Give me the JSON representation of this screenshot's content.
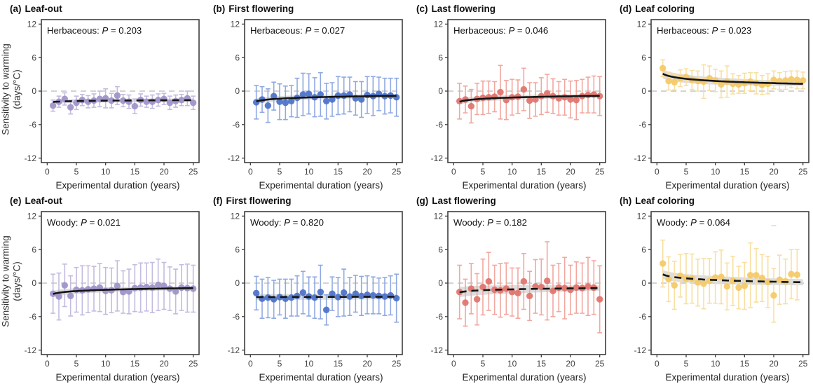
{
  "figure": {
    "ylabel_line1": "Sensitivity to warming",
    "ylabel_line2": "(days/°C)",
    "xlabel": "Experimental duration (years)",
    "yticks": [
      -12,
      -6,
      0,
      6,
      12
    ],
    "xticks": [
      0,
      5,
      10,
      15,
      20,
      25
    ],
    "ylim": [
      -12.8,
      12.8
    ],
    "xlim": [
      -1,
      26
    ],
    "colors": {
      "trend_line": "#141414",
      "zero_line": "#b9b9b9",
      "ci_band": "#d7d7d7",
      "panel_border": "#3d3d3d",
      "purple_point": "#9e91c9",
      "purple_bar": "#c4bbdf",
      "blue_point": "#4b71c9",
      "blue_bar": "#8fa9e2",
      "red_point": "#e0736c",
      "red_bar": "#f2a79f",
      "yellow_point": "#f4c966",
      "yellow_bar": "#f8dfa2"
    }
  },
  "chart_data": [
    {
      "type": "scatter",
      "label": "(a)",
      "title": "Leaf-out",
      "annotation": {
        "prefix": "Herbaceous: ",
        "p": "P",
        "suffix": " = 0.203"
      },
      "point_color": "#9e91c9",
      "bar_color": "#c4bbdf",
      "trend_style": "dashed",
      "trend": {
        "start": -1.95,
        "end": -1.62,
        "shape": "log"
      },
      "band": {
        "start": 0.35,
        "end": 0.3
      },
      "x": [
        1,
        2,
        3,
        4,
        5,
        6,
        7,
        8,
        9,
        10,
        11,
        12,
        13,
        14,
        15,
        16,
        17,
        18,
        19,
        20,
        21,
        22,
        23,
        24,
        25
      ],
      "y": [
        -2.6,
        -1.9,
        -1.4,
        -2.9,
        -2.1,
        -1.6,
        -1.9,
        -1.7,
        -1.4,
        -1.3,
        -1.7,
        -0.8,
        -1.7,
        -1.9,
        -2.7,
        -1.6,
        -1.9,
        -1.9,
        -1.6,
        -1.4,
        -2.1,
        -1.8,
        -1.6,
        -1.3,
        -2.1
      ],
      "err": [
        1.0,
        1.0,
        1.1,
        1.2,
        1.2,
        1.0,
        1.1,
        1.2,
        1.4,
        1.7,
        1.3,
        1.6,
        1.1,
        1.2,
        1.3,
        1.1,
        1.0,
        1.2,
        1.1,
        1.0,
        1.2,
        1.1,
        1.0,
        1.3,
        1.2
      ]
    },
    {
      "type": "scatter",
      "label": "(b)",
      "title": "First flowering",
      "annotation": {
        "prefix": "Herbaceous: ",
        "p": "P",
        "suffix": " = 0.027"
      },
      "point_color": "#4b71c9",
      "bar_color": "#8fa9e2",
      "trend_style": "solid",
      "trend": {
        "start": -1.85,
        "end": -0.85,
        "shape": "log"
      },
      "band": {
        "start": 0.5,
        "end": 0.3
      },
      "x": [
        1,
        2,
        3,
        4,
        5,
        6,
        7,
        8,
        9,
        10,
        11,
        12,
        13,
        14,
        15,
        16,
        17,
        18,
        19,
        20,
        21,
        22,
        23,
        24,
        25
      ],
      "y": [
        -2.0,
        -1.5,
        -2.6,
        -0.9,
        -1.9,
        -2.1,
        -1.8,
        -1.2,
        -0.6,
        -0.5,
        -1.1,
        -0.6,
        -1.8,
        -1.5,
        -0.8,
        -0.8,
        -0.6,
        -1.3,
        -1.5,
        -0.7,
        -0.9,
        -0.5,
        -0.9,
        -0.8,
        -1.1
      ],
      "err": [
        3.0,
        2.3,
        3.0,
        2.5,
        3.2,
        3.0,
        2.8,
        3.5,
        3.8,
        3.6,
        3.5,
        3.9,
        3.2,
        3.0,
        3.4,
        3.3,
        3.1,
        3.0,
        3.2,
        3.3,
        3.5,
        3.0,
        3.2,
        3.1,
        3.4
      ]
    },
    {
      "type": "scatter",
      "label": "(c)",
      "title": "Last flowering",
      "annotation": {
        "prefix": "Herbaceous: ",
        "p": "P",
        "suffix": " = 0.046"
      },
      "point_color": "#e0736c",
      "bar_color": "#f2a79f",
      "trend_style": "solid",
      "trend": {
        "start": -1.9,
        "end": -0.85,
        "shape": "log"
      },
      "band": {
        "start": 0.5,
        "end": 0.3
      },
      "x": [
        1,
        2,
        3,
        4,
        5,
        6,
        7,
        8,
        9,
        10,
        11,
        12,
        13,
        14,
        15,
        16,
        17,
        18,
        19,
        20,
        21,
        22,
        23,
        24,
        25
      ],
      "y": [
        -1.8,
        -1.5,
        -2.7,
        -1.4,
        -1.2,
        -1.1,
        -1.0,
        -0.2,
        -1.6,
        -1.1,
        -1.0,
        0.3,
        -1.7,
        -1.5,
        -0.9,
        -0.4,
        -0.9,
        -1.3,
        -1.1,
        -1.5,
        -1.6,
        -0.9,
        -0.7,
        -0.6,
        -0.9
      ],
      "err": [
        3.2,
        2.4,
        3.0,
        2.8,
        3.0,
        2.9,
        2.7,
        4.8,
        3.5,
        3.2,
        3.0,
        3.8,
        3.2,
        3.0,
        3.3,
        3.4,
        3.1,
        3.0,
        3.2,
        3.3,
        3.5,
        3.0,
        3.2,
        3.3,
        3.5
      ]
    },
    {
      "type": "scatter",
      "label": "(d)",
      "title": "Leaf coloring",
      "annotation": {
        "prefix": "Herbaceous: ",
        "p": "P",
        "suffix": " = 0.023"
      },
      "point_color": "#f4c966",
      "bar_color": "#f8dfa2",
      "trend_style": "solid",
      "trend": {
        "start": 3.1,
        "end": 1.3,
        "shape": "log"
      },
      "band": {
        "start": 0.8,
        "end": 0.4
      },
      "x": [
        1,
        2,
        3,
        4,
        5,
        6,
        7,
        8,
        9,
        10,
        11,
        12,
        13,
        14,
        15,
        16,
        17,
        18,
        19,
        20,
        21,
        22,
        23,
        24,
        25
      ],
      "y": [
        4.1,
        1.8,
        1.6,
        2.3,
        2.5,
        2.0,
        1.8,
        1.7,
        2.3,
        1.9,
        1.2,
        1.7,
        1.3,
        1.2,
        1.4,
        1.7,
        1.4,
        1.1,
        1.3,
        2.0,
        1.8,
        1.9,
        2.1,
        2.0,
        1.9
      ],
      "err": [
        1.5,
        1.6,
        1.4,
        1.5,
        1.5,
        1.7,
        1.8,
        3.0,
        2.2,
        2.0,
        2.4,
        2.8,
        1.8,
        1.6,
        1.8,
        1.6,
        1.9,
        1.7,
        1.8,
        1.6,
        1.5,
        1.6,
        1.5,
        1.6,
        1.5
      ]
    },
    {
      "type": "scatter",
      "label": "(e)",
      "title": "Leaf-out",
      "annotation": {
        "prefix": "Woody: ",
        "p": "P",
        "suffix": " = 0.021"
      },
      "point_color": "#9e91c9",
      "bar_color": "#c4bbdf",
      "trend_style": "solid",
      "trend": {
        "start": -1.95,
        "end": -0.9,
        "shape": "log"
      },
      "band": {
        "start": 0.55,
        "end": 0.3
      },
      "x": [
        1,
        2,
        3,
        4,
        5,
        6,
        7,
        8,
        9,
        10,
        11,
        12,
        13,
        14,
        15,
        16,
        17,
        18,
        19,
        20,
        21,
        22,
        23,
        24,
        25
      ],
      "y": [
        -1.9,
        -2.4,
        -0.4,
        -2.3,
        -1.2,
        -1.3,
        -1.1,
        -1.0,
        -0.8,
        -1.4,
        -1.3,
        -0.5,
        -1.6,
        -1.5,
        -0.9,
        -0.8,
        -0.7,
        -0.8,
        -0.3,
        -0.5,
        -1.0,
        -1.5,
        -0.8,
        -0.9,
        -1.0
      ],
      "err": [
        3.5,
        4.2,
        3.8,
        3.6,
        4.0,
        4.4,
        4.2,
        4.0,
        4.3,
        4.2,
        4.0,
        4.5,
        3.8,
        4.0,
        4.2,
        4.4,
        4.3,
        4.5,
        4.6,
        4.2,
        3.9,
        4.0,
        4.1,
        4.3,
        4.2
      ]
    },
    {
      "type": "scatter",
      "label": "(f)",
      "title": "First flowering",
      "annotation": {
        "prefix": "Woody: ",
        "p": "P",
        "suffix": " = 0.820"
      },
      "point_color": "#4b71c9",
      "bar_color": "#8fa9e2",
      "trend_style": "dashed",
      "trend": {
        "start": -2.5,
        "end": -2.45,
        "shape": "linear"
      },
      "band": {
        "start": 0.55,
        "end": 0.45
      },
      "x": [
        1,
        2,
        3,
        4,
        5,
        6,
        7,
        8,
        9,
        10,
        11,
        12,
        13,
        14,
        15,
        16,
        17,
        18,
        19,
        20,
        21,
        22,
        23,
        24,
        25
      ],
      "y": [
        -1.8,
        -2.8,
        -2.6,
        -2.9,
        -2.5,
        -2.8,
        -2.6,
        -2.3,
        -1.7,
        -2.4,
        -2.6,
        -1.6,
        -4.8,
        -1.9,
        -2.5,
        -1.7,
        -2.4,
        -1.9,
        -2.3,
        -2.1,
        -2.2,
        -2.3,
        -2.4,
        -2.2,
        -2.7
      ],
      "err": [
        3.0,
        3.5,
        3.6,
        3.4,
        3.2,
        3.5,
        3.3,
        3.6,
        3.8,
        3.5,
        3.7,
        4.8,
        2.7,
        3.0,
        3.5,
        4.2,
        3.4,
        3.3,
        3.5,
        3.4,
        3.3,
        3.2,
        3.4,
        3.5,
        4.3
      ]
    },
    {
      "type": "scatter",
      "label": "(g)",
      "title": "Last flowering",
      "annotation": {
        "prefix": "Woody: ",
        "p": "P",
        "suffix": " = 0.182"
      },
      "point_color": "#e0736c",
      "bar_color": "#f2a79f",
      "trend_style": "dashed",
      "trend": {
        "start": -1.65,
        "end": -0.9,
        "shape": "log"
      },
      "band": {
        "start": 0.9,
        "end": 0.45
      },
      "x": [
        1,
        2,
        3,
        4,
        5,
        6,
        7,
        8,
        9,
        10,
        11,
        12,
        13,
        14,
        15,
        16,
        17,
        18,
        19,
        20,
        21,
        22,
        23,
        24,
        25
      ],
      "y": [
        -1.6,
        -3.5,
        -1.0,
        -2.9,
        -0.7,
        0.3,
        -1.2,
        -1.3,
        -1.0,
        -1.6,
        -1.8,
        0.3,
        -2.3,
        -0.6,
        -0.7,
        0.4,
        -1.4,
        -0.8,
        -0.9,
        -1.2,
        -0.8,
        -0.9,
        -0.6,
        -0.8,
        -2.9
      ],
      "err": [
        4.8,
        4.2,
        4.5,
        4.6,
        5.0,
        5.2,
        4.4,
        4.8,
        4.6,
        4.3,
        4.5,
        5.0,
        4.4,
        4.8,
        5.0,
        7.0,
        4.6,
        4.3,
        5.5,
        4.4,
        4.6,
        4.5,
        5.2,
        4.8,
        6.0
      ]
    },
    {
      "type": "scatter",
      "label": "(h)",
      "title": "Leaf coloring",
      "annotation": {
        "prefix": "Woody: ",
        "p": "P",
        "suffix": " = 0.064"
      },
      "point_color": "#f4c966",
      "bar_color": "#f8dfa2",
      "trend_style": "dashed",
      "trend": {
        "start": 1.55,
        "end": 0.15,
        "shape": "log"
      },
      "band": {
        "start": 0.8,
        "end": 0.55
      },
      "x": [
        1,
        2,
        3,
        4,
        5,
        6,
        7,
        8,
        9,
        10,
        11,
        12,
        13,
        14,
        15,
        16,
        17,
        18,
        19,
        20,
        21,
        22,
        23,
        24
      ],
      "y": [
        3.5,
        0.7,
        -0.4,
        1.3,
        0.8,
        0.8,
        0.1,
        -0.1,
        0.4,
        1.0,
        1.1,
        -0.6,
        0.4,
        -0.8,
        -0.5,
        1.4,
        1.4,
        0.9,
        0.2,
        -2.2,
        0.6,
        0.3,
        1.6,
        1.5
      ],
      "err": [
        4.2,
        4.0,
        4.3,
        3.8,
        4.5,
        4.4,
        4.2,
        4.5,
        4.0,
        4.6,
        4.8,
        4.2,
        4.4,
        3.8,
        4.2,
        5.8,
        4.8,
        4.2,
        4.6,
        4.8,
        4.4,
        4.0,
        4.4,
        4.5
      ],
      "extra_cap": {
        "x": 20,
        "y": 10.3
      }
    }
  ]
}
